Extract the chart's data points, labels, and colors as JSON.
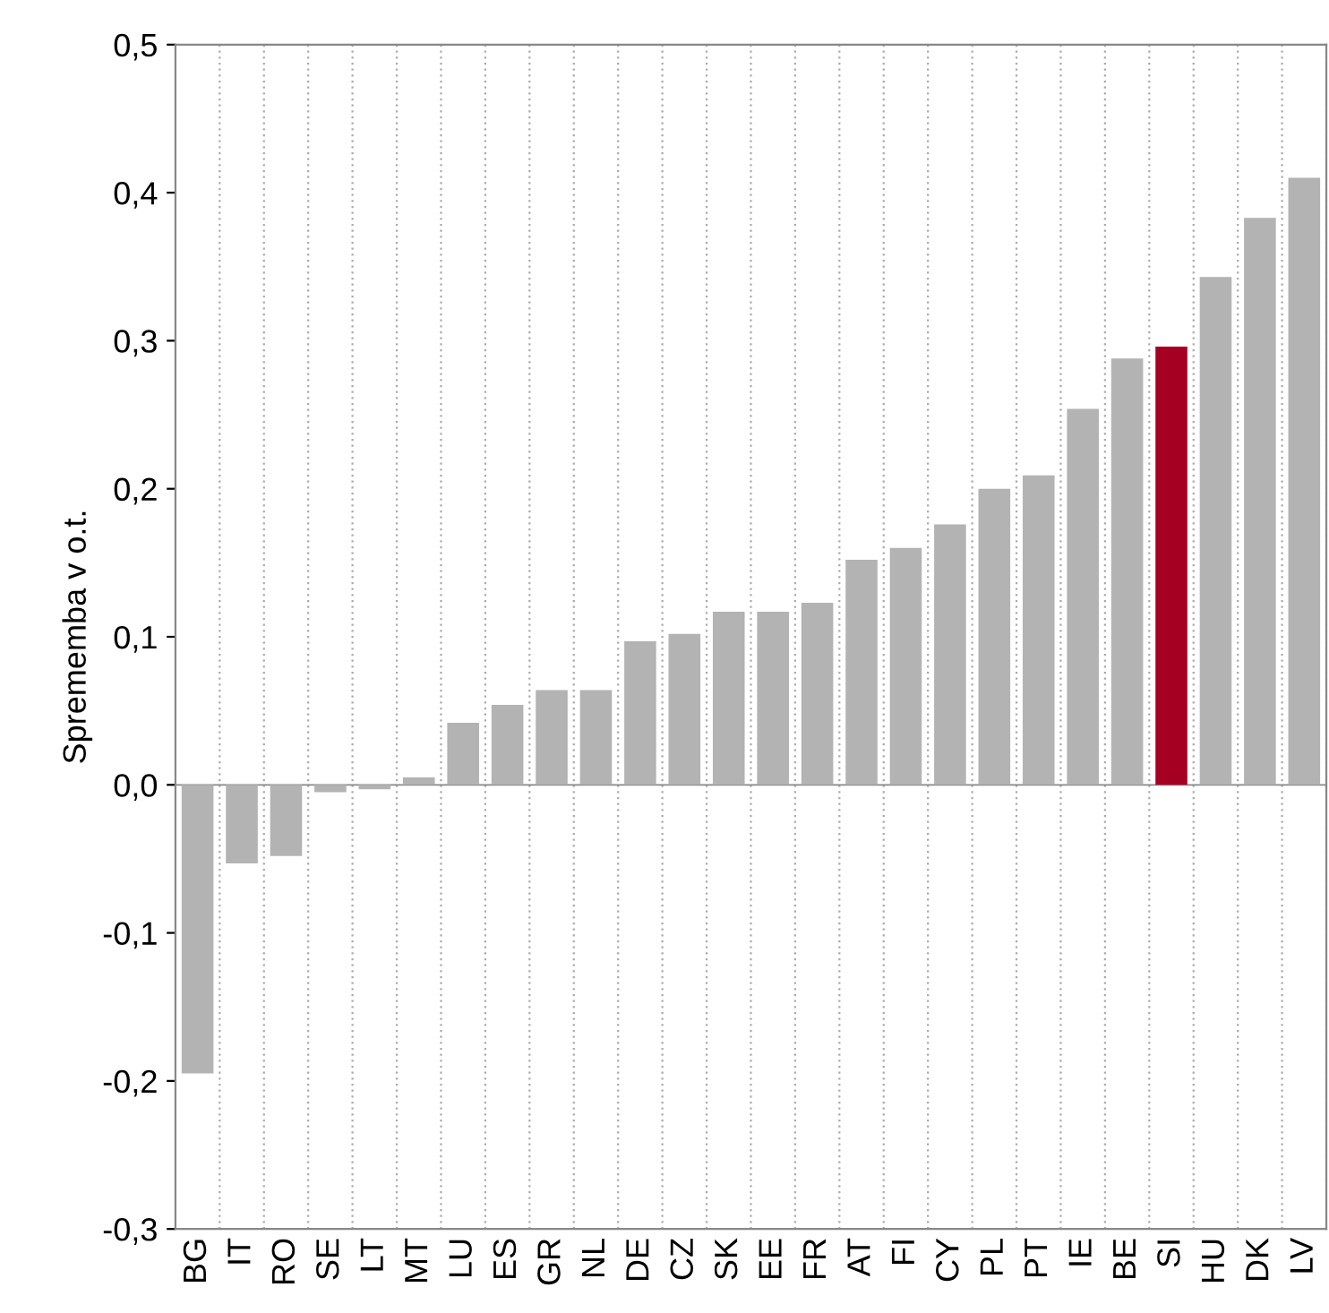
{
  "chart_data": {
    "type": "bar",
    "ylabel": "Sprememba v o.t.",
    "categories": [
      "BG",
      "IT",
      "RO",
      "SE",
      "LT",
      "MT",
      "LU",
      "ES",
      "GR",
      "NL",
      "DE",
      "CZ",
      "SK",
      "EE",
      "FR",
      "AT",
      "FI",
      "CY",
      "PL",
      "PT",
      "IE",
      "BE",
      "SI",
      "HU",
      "DK",
      "LV"
    ],
    "values": [
      -0.195,
      -0.053,
      -0.048,
      -0.005,
      -0.003,
      0.005,
      0.042,
      0.054,
      0.064,
      0.064,
      0.097,
      0.102,
      0.117,
      0.117,
      0.123,
      0.152,
      0.16,
      0.176,
      0.2,
      0.209,
      0.254,
      0.288,
      0.296,
      0.343,
      0.383,
      0.41
    ],
    "colors": [
      "#b3b3b3",
      "#b3b3b3",
      "#b3b3b3",
      "#b3b3b3",
      "#b3b3b3",
      "#b3b3b3",
      "#b3b3b3",
      "#b3b3b3",
      "#b3b3b3",
      "#b3b3b3",
      "#b3b3b3",
      "#b3b3b3",
      "#b3b3b3",
      "#b3b3b3",
      "#b3b3b3",
      "#b3b3b3",
      "#b3b3b3",
      "#b3b3b3",
      "#b3b3b3",
      "#b3b3b3",
      "#b3b3b3",
      "#b3b3b3",
      "#a50021",
      "#b3b3b3",
      "#b3b3b3",
      "#b3b3b3"
    ],
    "ylim": [
      -0.3,
      0.5
    ],
    "yticks": [
      {
        "value": -0.3,
        "label": "-0,3"
      },
      {
        "value": -0.2,
        "label": "-0,2"
      },
      {
        "value": -0.1,
        "label": "-0,1"
      },
      {
        "value": 0,
        "label": "0,0"
      },
      {
        "value": 0.1,
        "label": "0,1"
      },
      {
        "value": 0.2,
        "label": "0,2"
      },
      {
        "value": 0.3,
        "label": "0,3"
      },
      {
        "value": 0.4,
        "label": "0,4"
      },
      {
        "value": 0.5,
        "label": "0,5"
      }
    ],
    "grid": "x"
  }
}
